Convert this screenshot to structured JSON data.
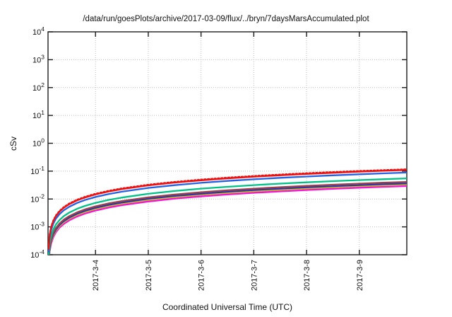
{
  "chart_data": {
    "type": "line",
    "title": "/data/run/goesPlots/archive/2017-03-09/flux/../bryn/7daysMarsAccumulated.plot",
    "xlabel": "Coordinated Universal Time (UTC)",
    "ylabel": "cSv",
    "y_scale": "log10",
    "ylim": [
      0.0001,
      10000
    ],
    "y_tick_exponents": [
      4,
      3,
      2,
      1,
      0,
      -1,
      -2,
      -3,
      -4
    ],
    "grid": true,
    "legend": "none",
    "x_ticks": [
      {
        "label": "2017-3-4",
        "t": 0.9
      },
      {
        "label": "2017-3-5",
        "t": 1.9
      },
      {
        "label": "2017-3-6",
        "t": 2.9
      },
      {
        "label": "2017-3-7",
        "t": 3.9
      },
      {
        "label": "2017-3-8",
        "t": 4.9
      },
      {
        "label": "2017-3-9",
        "t": 5.9
      }
    ],
    "x_range_days": [
      0,
      6.8
    ],
    "x_days": [
      0.01,
      0.03,
      0.06,
      0.1,
      0.15,
      0.22,
      0.3,
      0.4,
      0.55,
      0.7,
      0.9,
      1.15,
      1.4,
      1.9,
      2.4,
      2.9,
      3.4,
      3.9,
      4.4,
      4.9,
      5.4,
      5.9,
      6.35,
      6.79
    ],
    "series": [
      {
        "name": "red-dotted",
        "color": "#ee1111",
        "line_style": "dotted",
        "values": [
          0.000172,
          0.000516,
          0.00103,
          0.00172,
          0.00258,
          0.00378,
          0.00516,
          0.00688,
          0.00946,
          0.012,
          0.0155,
          0.0198,
          0.0241,
          0.0327,
          0.0413,
          0.0499,
          0.0585,
          0.0671,
          0.0757,
          0.0843,
          0.0929,
          0.1015,
          0.1092,
          0.1168
        ]
      },
      {
        "name": "red",
        "color": "#ee1111",
        "line_style": "solid",
        "values": [
          0.000162,
          0.000486,
          0.000972,
          0.00162,
          0.00243,
          0.00356,
          0.00486,
          0.00648,
          0.00891,
          0.0113,
          0.0146,
          0.0186,
          0.0227,
          0.0308,
          0.0389,
          0.047,
          0.0551,
          0.0632,
          0.0713,
          0.0794,
          0.0875,
          0.0956,
          0.1029,
          0.11
        ]
      },
      {
        "name": "blue",
        "color": "#2262e6",
        "line_style": "solid",
        "values": [
          0.000131,
          0.000393,
          0.000786,
          0.00131,
          0.00197,
          0.00288,
          0.00393,
          0.00524,
          0.00721,
          0.00917,
          0.0118,
          0.0151,
          0.0183,
          0.0249,
          0.0314,
          0.038,
          0.0445,
          0.0511,
          0.0576,
          0.0642,
          0.0707,
          0.0773,
          0.0832,
          0.0889
        ]
      },
      {
        "name": "green",
        "color": "#00c287",
        "line_style": "solid",
        "values": [
          8.1e-05,
          0.000243,
          0.000486,
          0.00081,
          0.00122,
          0.00178,
          0.00243,
          0.00324,
          0.00446,
          0.00567,
          0.00729,
          0.00932,
          0.0113,
          0.0154,
          0.0194,
          0.0235,
          0.0275,
          0.0316,
          0.0356,
          0.0397,
          0.0437,
          0.0478,
          0.0514,
          0.055
        ]
      },
      {
        "name": "maroon",
        "color": "#9c4048",
        "line_style": "solid",
        "values": [
          6.05e-05,
          0.000182,
          0.000363,
          0.000605,
          0.000908,
          0.00133,
          0.00182,
          0.00242,
          0.00333,
          0.00424,
          0.00545,
          0.00696,
          0.00847,
          0.0115,
          0.0145,
          0.0175,
          0.0206,
          0.0236,
          0.0266,
          0.0296,
          0.0327,
          0.0357,
          0.0384,
          0.0411
        ]
      },
      {
        "name": "navy",
        "color": "#2c35b0",
        "line_style": "solid",
        "values": [
          5.36e-05,
          0.000161,
          0.000322,
          0.000536,
          0.000804,
          0.00118,
          0.00161,
          0.00214,
          0.00295,
          0.00375,
          0.00482,
          0.00616,
          0.0075,
          0.0102,
          0.0129,
          0.0155,
          0.0182,
          0.0209,
          0.0236,
          0.0263,
          0.0289,
          0.0316,
          0.034,
          0.0364
        ]
      },
      {
        "name": "yellow",
        "color": "#c8c814",
        "line_style": "solid",
        "values": [
          4.92e-05,
          0.000148,
          0.000295,
          0.000492,
          0.000738,
          0.00108,
          0.00148,
          0.00197,
          0.00271,
          0.00344,
          0.00443,
          0.00566,
          0.00689,
          0.00935,
          0.0118,
          0.0143,
          0.0167,
          0.0192,
          0.0216,
          0.0241,
          0.0266,
          0.029,
          0.0312,
          0.0334
        ]
      },
      {
        "name": "magenta-dotted",
        "color": "#f316d5",
        "line_style": "dotted",
        "values": [
          4.6e-05,
          0.000138,
          0.000276,
          0.00046,
          0.00069,
          0.00101,
          0.00138,
          0.00184,
          0.00253,
          0.00322,
          0.00414,
          0.00529,
          0.00644,
          0.00874,
          0.011,
          0.0133,
          0.0156,
          0.0179,
          0.0202,
          0.0225,
          0.0248,
          0.0271,
          0.0292,
          0.0312
        ]
      },
      {
        "name": "magenta",
        "color": "#f316d5",
        "line_style": "solid",
        "values": [
          4.28e-05,
          0.000128,
          0.000257,
          0.000428,
          0.000642,
          0.000942,
          0.00128,
          0.00171,
          0.00235,
          0.003,
          0.00385,
          0.00492,
          0.00599,
          0.00813,
          0.0103,
          0.0124,
          0.0146,
          0.0167,
          0.0188,
          0.021,
          0.0231,
          0.0253,
          0.0272,
          0.0291
        ]
      }
    ]
  }
}
